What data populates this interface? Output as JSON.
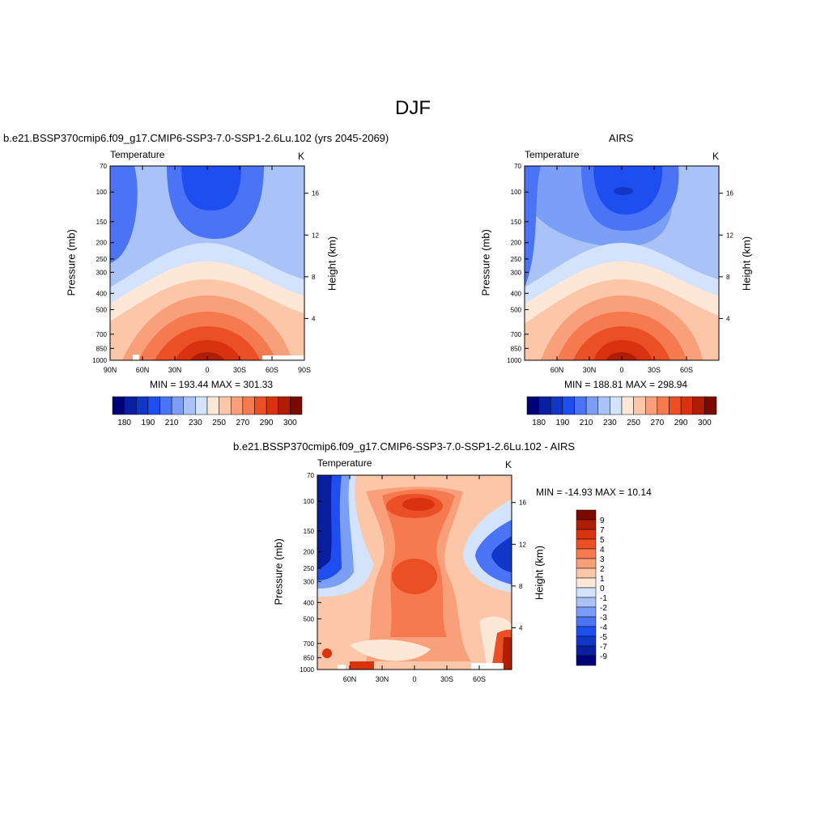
{
  "title": "DJF",
  "colors": {
    "diverging": [
      "#00007a",
      "#0a1ea0",
      "#1236c8",
      "#1f4ef0",
      "#4a74f5",
      "#7b9ef7",
      "#a9c2f8",
      "#d2e3fb",
      "#fde8d7",
      "#fcc7a9",
      "#f9a07a",
      "#f57a50",
      "#ea4f26",
      "#d8320f",
      "#b01d06",
      "#7a0a00"
    ]
  },
  "chart_data": [
    {
      "type": "heatmap",
      "title": "b.e21.BSSP370cmip6.f09_g17.CMIP6-SSP3-7.0-SSP1-2.6Lu.102 (yrs 2045-2069)",
      "left_label": "Temperature",
      "right_label": "K",
      "ylabel": "Pressure (mb)",
      "y2label": "Height (km)",
      "x_ticks": [
        "90N",
        "60N",
        "30N",
        "0",
        "30S",
        "60S",
        "90S"
      ],
      "y_ticks": [
        "70",
        "100",
        "150",
        "200",
        "250",
        "300",
        "400",
        "500",
        "700",
        "850",
        "1000"
      ],
      "y2_ticks": [
        "16",
        "12",
        "8",
        "4"
      ],
      "stats": "MIN = 193.44   MAX = 301.33",
      "colorbar_labels": [
        "180",
        "190",
        "210",
        "230",
        "250",
        "270",
        "290",
        "300"
      ],
      "min": 193.44,
      "max": 301.33
    },
    {
      "type": "heatmap",
      "title": "AIRS",
      "left_label": "Temperature",
      "right_label": "K",
      "ylabel": "Pressure (mb)",
      "y2label": "Height (km)",
      "x_ticks": [
        "60N",
        "30N",
        "0",
        "30S",
        "60S"
      ],
      "y_ticks": [
        "70",
        "100",
        "150",
        "200",
        "250",
        "300",
        "400",
        "500",
        "700",
        "850",
        "1000"
      ],
      "y2_ticks": [
        "16",
        "12",
        "8",
        "4"
      ],
      "stats": "MIN = 188.81   MAX = 298.94",
      "colorbar_labels": [
        "180",
        "190",
        "210",
        "230",
        "250",
        "270",
        "290",
        "300"
      ],
      "min": 188.81,
      "max": 298.94
    },
    {
      "type": "heatmap",
      "title": "b.e21.BSSP370cmip6.f09_g17.CMIP6-SSP3-7.0-SSP1-2.6Lu.102 - AIRS",
      "left_label": "Temperature",
      "right_label": "K",
      "ylabel": "Pressure (mb)",
      "y2label": "Height (km)",
      "x_ticks": [
        "60N",
        "30N",
        "0",
        "30S",
        "60S"
      ],
      "y_ticks": [
        "70",
        "100",
        "150",
        "200",
        "250",
        "300",
        "400",
        "500",
        "700",
        "850",
        "1000"
      ],
      "y2_ticks": [
        "16",
        "12",
        "8",
        "4"
      ],
      "stats": "MIN = -14.93   MAX =  10.14",
      "colorbar_labels": [
        "9",
        "7",
        "5",
        "4",
        "3",
        "2",
        "1",
        "0",
        "-1",
        "-2",
        "-3",
        "-4",
        "-5",
        "-7",
        "-9"
      ],
      "min": -14.93,
      "max": 10.14
    }
  ]
}
